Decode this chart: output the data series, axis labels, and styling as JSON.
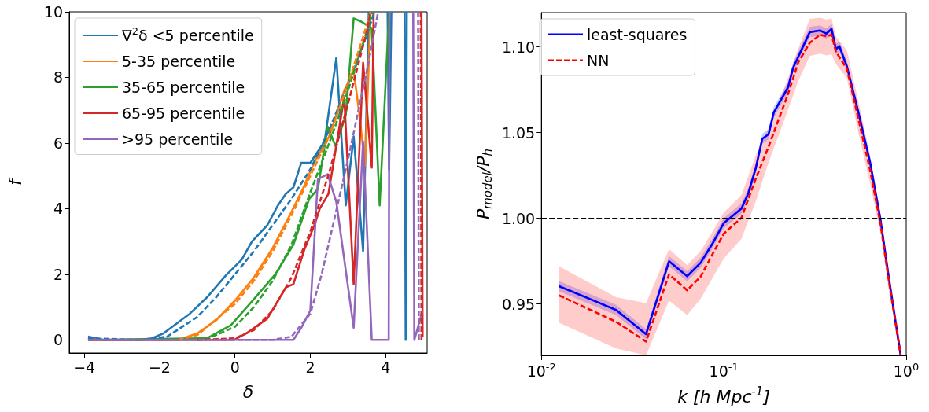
{
  "chart_data": [
    {
      "type": "line",
      "xlabel": "δ",
      "ylabel": "f",
      "xlim": [
        -4.4,
        5.1
      ],
      "ylim": [
        -0.4,
        10
      ],
      "xticks": [
        {
          "value": -4,
          "label": "−4"
        },
        {
          "value": -2,
          "label": "−2"
        },
        0,
        2,
        4
      ],
      "yticks": [
        0,
        2,
        4,
        6,
        8,
        10
      ],
      "legend": "top left",
      "marker": "none",
      "grid": false,
      "series": [
        {
          "name": "∇$^{2}$δ <5 percentile",
          "color": "#1f77b4",
          "line_style": "solid",
          "x": [
            -3.9,
            -3.5,
            -2.5,
            -2.2,
            -1.9,
            -1.2,
            -0.74,
            -0.24,
            0.18,
            0.45,
            0.86,
            1.14,
            1.35,
            1.55,
            1.76,
            2.0,
            2.38,
            2.69,
            2.94,
            3.15,
            3.4,
            3.55,
            3.6,
            4.05,
            4.09,
            4.15,
            4.2,
            4.5,
            4.53,
            4.56
          ],
          "values": [
            0.1,
            0,
            0,
            0.05,
            0.2,
            0.8,
            1.3,
            1.97,
            2.45,
            3.0,
            3.5,
            4.1,
            4.45,
            4.65,
            5.4,
            5.4,
            6.05,
            8.6,
            4.1,
            6.2,
            2.7,
            10,
            null,
            10,
            5.2,
            10,
            null,
            10,
            0,
            10
          ]
        },
        {
          "name": "5-35 percentile",
          "color": "#ff7f0e",
          "line_style": "solid",
          "x": [
            -3.9,
            -1.5,
            -1,
            -0.5,
            0,
            0.5,
            1,
            1.5,
            1.8,
            2.1,
            2.5,
            2.9,
            3.15,
            3.3,
            3.45,
            3.6
          ],
          "values": [
            0,
            0,
            0.2,
            0.6,
            1.2,
            1.9,
            2.8,
            3.9,
            4.6,
            5.4,
            6.2,
            7.6,
            8.2,
            6.9,
            5.3,
            10
          ]
        },
        {
          "name": "35-65 percentile",
          "color": "#2ca02c",
          "line_style": "solid",
          "x": [
            -3.9,
            -0.74,
            -0.11,
            0.45,
            1.07,
            1.55,
            1.97,
            2.2,
            2.46,
            2.67,
            2.94,
            3.15,
            3.35,
            3.63,
            3.84,
            4.09
          ],
          "values": [
            0,
            0.05,
            0.45,
            1.17,
            2.0,
            2.9,
            4.3,
            4.6,
            6.5,
            5.9,
            6.85,
            9.8,
            9.7,
            9.5,
            4.1,
            10
          ]
        },
        {
          "name": "65-95 percentile",
          "color": "#d62728",
          "line_style": "solid",
          "x": [
            -3.9,
            -0.03,
            0.3,
            0.86,
            1.35,
            1.55,
            1.84,
            2.11,
            2.25,
            2.48,
            2.9,
            3.15,
            3.4,
            3.63,
            3.68,
            3.7,
            4.95,
            4.98
          ],
          "values": [
            0,
            0,
            0.2,
            0.65,
            1.6,
            1.7,
            2.75,
            3.5,
            4.0,
            4.45,
            7.4,
            1.7,
            8.45,
            5.25,
            10,
            null,
            10,
            0.1
          ]
        },
        {
          "name": ">95 percentile",
          "color": "#9467bd",
          "line_style": "solid",
          "x": [
            -3.9,
            -3.5,
            1.55,
            1.76,
            2.0,
            2.2,
            2.46,
            2.69,
            3.15,
            3.4,
            3.63,
            4.08,
            4.1,
            4.12,
            4.73,
            4.76,
            4.98
          ],
          "values": [
            0.05,
            0,
            0,
            0.37,
            0.9,
            4.9,
            5.05,
            4.2,
            0.37,
            6.05,
            0,
            0,
            10,
            null,
            10,
            0,
            0.9
          ]
        },
        {
          "color": "#1f77b4",
          "line_style": "dashed",
          "x": [
            -3.9,
            -2.5,
            -1.8,
            -1,
            -0.5,
            0,
            0.5,
            1,
            1.5,
            2,
            2.5,
            3,
            3.5,
            3.7
          ],
          "values": [
            0.05,
            0,
            0.1,
            0.7,
            1.3,
            2.0,
            2.7,
            3.5,
            4.3,
            5.2,
            6.4,
            7.8,
            9.3,
            10
          ]
        },
        {
          "color": "#ff7f0e",
          "line_style": "dashed",
          "x": [
            -1.5,
            -1,
            0,
            0.5,
            1,
            1.5,
            2,
            2.5,
            3,
            3.5,
            3.6
          ],
          "values": [
            0,
            0.15,
            1.1,
            1.8,
            2.7,
            3.8,
            5.0,
            6.2,
            7.8,
            9.6,
            10
          ]
        },
        {
          "color": "#2ca02c",
          "line_style": "dashed",
          "x": [
            -0.8,
            0,
            0.5,
            1,
            1.5,
            2,
            2.5,
            3,
            3.5,
            3.65
          ],
          "values": [
            0,
            0.4,
            1.0,
            1.8,
            2.9,
            4.5,
            6.0,
            7.6,
            9.4,
            10
          ]
        },
        {
          "color": "#d62728",
          "line_style": "dashed",
          "x": [
            -1,
            0,
            0.5,
            1,
            1.5,
            2,
            2.5,
            3,
            3.5,
            3.6,
            3.62,
            4.93,
            4.95
          ],
          "values": [
            0,
            0.05,
            0.3,
            0.9,
            1.9,
            3.3,
            5.1,
            7.2,
            9.4,
            10,
            null,
            10,
            0
          ]
        },
        {
          "color": "#9467bd",
          "line_style": "dashed",
          "x": [
            -3.9,
            1,
            1.5,
            2,
            2.3,
            2.6,
            3,
            3.5,
            3.8,
            3.82,
            4.86,
            4.88
          ],
          "values": [
            0,
            0,
            0.1,
            0.8,
            2.0,
            3.5,
            5.5,
            8.2,
            10,
            null,
            10,
            0
          ]
        }
      ]
    },
    {
      "type": "line",
      "xlabel": "k [h Mpc$^{-1}$]",
      "ylabel": "P$_{model}$/P$_{h}$",
      "log": "x",
      "xlim": [
        0.01,
        1
      ],
      "ylim": [
        0.92,
        1.12
      ],
      "xticks": [
        {
          "value": 0.01,
          "label": "10$^{-2}$"
        },
        {
          "value": 0.1,
          "label": "10$^{-1}$"
        },
        {
          "value": 1,
          "label": "10$^{0}$"
        }
      ],
      "yticks": [
        0.95,
        {
          "value": 1.0,
          "label": "1.00"
        },
        1.05,
        {
          "value": 1.1,
          "label": "1.10"
        }
      ],
      "legend": "top left",
      "marker": "none",
      "grid": false,
      "ref_lines": [
        {
          "axis": "y",
          "value": 1.0,
          "color": "#000000",
          "line_style": "dashed"
        }
      ],
      "series": [
        {
          "name": "least-squares",
          "color": "#0000ff",
          "line_style": "solid",
          "x": [
            0.0125,
            0.0257,
            0.0375,
            0.0501,
            0.063,
            0.0747,
            0.0865,
            0.1,
            0.125,
            0.136,
            0.15,
            0.1626,
            0.176,
            0.188,
            0.225,
            0.24,
            0.256,
            0.296,
            0.337,
            0.365,
            0.39,
            0.412,
            0.43,
            0.473,
            0.547,
            0.634,
            0.722,
            0.808,
            0.933
          ],
          "values": [
            0.9604,
            0.9465,
            0.9324,
            0.9749,
            0.9662,
            0.9741,
            0.985,
            0.9972,
            1.0057,
            1.0143,
            1.0295,
            1.0464,
            1.049,
            1.0618,
            1.0763,
            1.0878,
            1.0942,
            1.1086,
            1.1096,
            1.1077,
            1.1105,
            1.0986,
            1.1004,
            1.0886,
            1.0618,
            1.0325,
            0.9995,
            0.9634,
            0.92
          ],
          "lower": [
            0.9574,
            0.9435,
            0.9294,
            0.9719,
            0.9632,
            0.9711,
            0.982,
            0.9942,
            1.0027,
            1.0113,
            1.0265,
            1.0434,
            1.046,
            1.0588,
            1.0733,
            1.0848,
            1.0912,
            1.1056,
            1.1066,
            1.1047,
            1.1075,
            1.0956,
            1.0974,
            1.0856,
            1.0588,
            1.0295,
            0.9965,
            0.9604,
            0.92
          ],
          "upper": [
            0.9634,
            0.9495,
            0.9354,
            0.9779,
            0.9692,
            0.9771,
            0.988,
            1.0002,
            1.0087,
            1.0173,
            1.0325,
            1.0494,
            1.052,
            1.0648,
            1.0793,
            1.0908,
            1.0972,
            1.1116,
            1.1126,
            1.1107,
            1.1135,
            1.1016,
            1.1034,
            1.0916,
            1.0648,
            1.0355,
            1.0025,
            0.9664,
            0.923
          ]
        },
        {
          "name": "NN",
          "color": "#ff0000",
          "line_style": "dashed",
          "x": [
            0.0125,
            0.0257,
            0.0375,
            0.0501,
            0.063,
            0.0747,
            0.0865,
            0.1,
            0.125,
            0.15,
            0.176,
            0.225,
            0.256,
            0.296,
            0.337,
            0.365,
            0.39,
            0.412,
            0.473,
            0.547,
            0.634,
            0.722,
            0.808,
            0.933
          ],
          "values": [
            0.955,
            0.9396,
            0.9281,
            0.9673,
            0.958,
            0.966,
            0.9788,
            0.991,
            1.0003,
            1.0233,
            1.0418,
            1.0725,
            1.0909,
            1.1024,
            1.107,
            1.1062,
            1.107,
            1.0971,
            1.0872,
            1.058,
            1.028,
            0.997,
            0.962,
            0.92
          ],
          "lower": [
            0.939,
            0.924,
            0.92,
            0.952,
            0.9435,
            0.953,
            0.965,
            0.9765,
            0.988,
            1.01,
            1.0325,
            1.0633,
            1.08,
            1.0947,
            1.096,
            1.095,
            1.0957,
            1.09,
            1.0817,
            1.05,
            1.02,
            0.992,
            0.956,
            0.92
          ],
          "upper": [
            0.972,
            0.954,
            0.9505,
            0.982,
            0.9726,
            0.981,
            0.992,
            1.0034,
            1.0135,
            1.037,
            1.0526,
            1.0817,
            1.099,
            1.1163,
            1.117,
            1.116,
            1.1166,
            1.106,
            1.0979,
            1.068,
            1.037,
            1.003,
            0.968,
            0.925
          ]
        }
      ]
    }
  ]
}
